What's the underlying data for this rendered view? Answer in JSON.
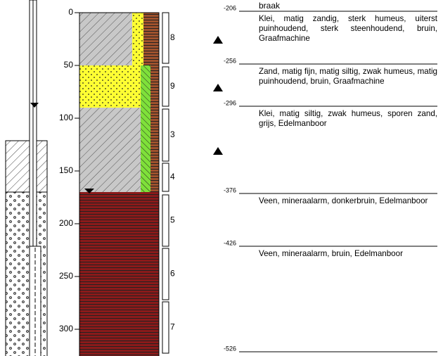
{
  "depth_axis": {
    "ylim": [
      0,
      321
    ],
    "ticks": [
      0,
      50,
      100,
      150,
      200,
      250,
      300
    ]
  },
  "samples": [
    "8",
    "9",
    "3",
    "4",
    "5",
    "6",
    "7"
  ],
  "surface": "braak",
  "levels": [
    {
      "label": "-206",
      "description": "Klei, matig zandig, sterk humeus, uiterst puinhoudend, sterk steenhoudend, bruin, Graafmachine"
    },
    {
      "label": "-256",
      "description": "Zand, matig fijn, matig siltig, zwak humeus, matig puinhoudend, bruin, Graafmachine"
    },
    {
      "label": "-296",
      "description": "Klei, matig siltig, zwak humeus, sporen zand, grijs, Edelmanboor"
    },
    {
      "label": "-376",
      "description": "Veen, mineraalarm, donkerbruin, Edelmanboor"
    },
    {
      "label": "-426",
      "description": "Veen, mineraalarm, bruin, Edelmanboor"
    },
    {
      "label": "-526"
    }
  ]
}
